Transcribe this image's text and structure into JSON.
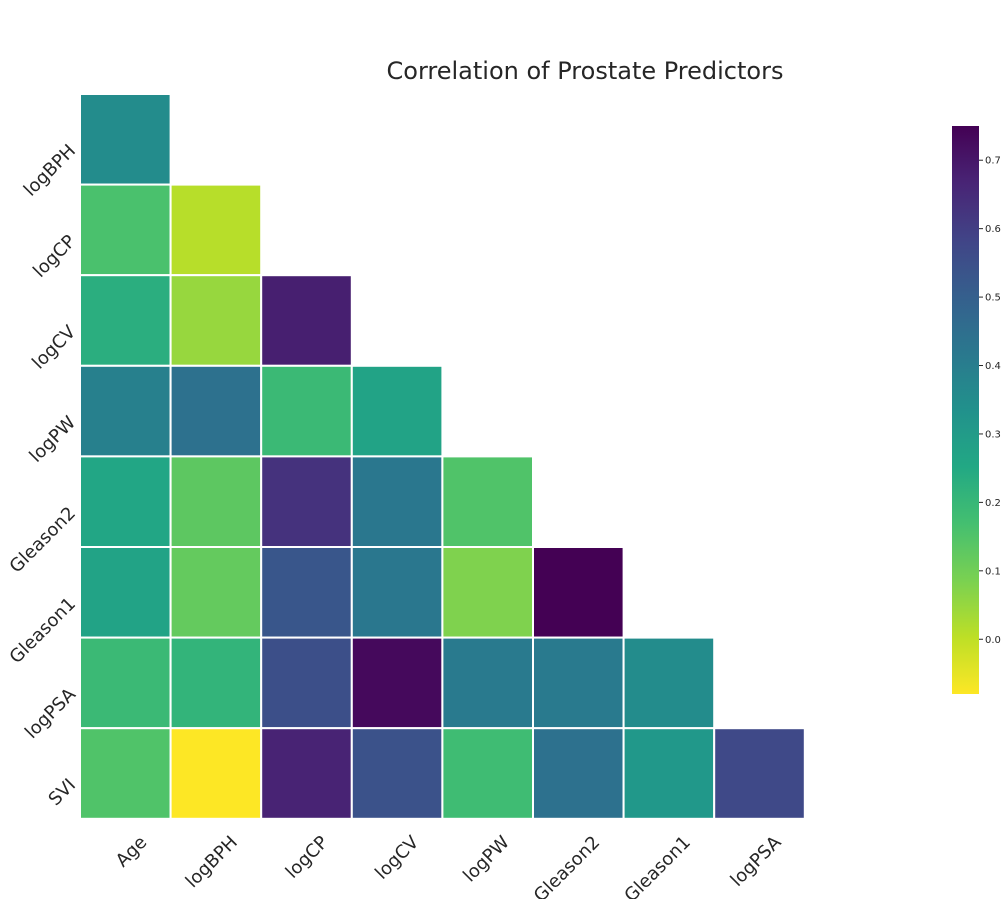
{
  "chart_data": {
    "type": "heatmap",
    "title": "Correlation of Prostate Predictors",
    "x_labels": [
      "Age",
      "logBPH",
      "logCP",
      "logCV",
      "logPW",
      "Gleason2",
      "Gleason1",
      "logPSA"
    ],
    "y_labels": [
      "logBPH",
      "logCP",
      "logCV",
      "logPW",
      "Gleason2",
      "Gleason1",
      "logPSA",
      "SVI"
    ],
    "matrix": [
      [
        0.35,
        null,
        null,
        null,
        null,
        null,
        null,
        null
      ],
      [
        0.16,
        0.01,
        null,
        null,
        null,
        null,
        null,
        null
      ],
      [
        0.23,
        0.05,
        0.68,
        null,
        null,
        null,
        null,
        null
      ],
      [
        0.39,
        0.44,
        0.19,
        0.27,
        null,
        null,
        null,
        null
      ],
      [
        0.26,
        0.13,
        0.63,
        0.42,
        0.15,
        null,
        null,
        null
      ],
      [
        0.27,
        0.12,
        0.53,
        0.42,
        0.08,
        0.75,
        null,
        null
      ],
      [
        0.19,
        0.21,
        0.55,
        0.73,
        0.41,
        0.41,
        0.35,
        null
      ],
      [
        0.15,
        -0.08,
        0.67,
        0.54,
        0.18,
        0.44,
        0.31,
        0.57
      ]
    ],
    "colorscale": "viridis_r",
    "vmin": -0.08,
    "vmax": 0.75,
    "colorbar_ticks": [
      "0.0",
      "0.1",
      "0.2",
      "0.3",
      "0.4",
      "0.5",
      "0.6",
      "0.7"
    ],
    "mask": "upper-triangle",
    "legend_placement": "right"
  }
}
